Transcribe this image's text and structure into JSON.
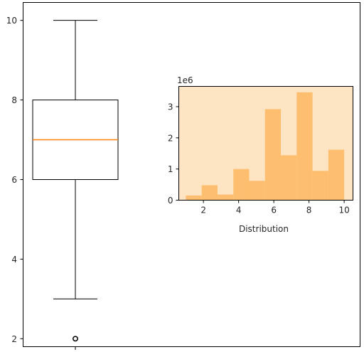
{
  "chart_data": [
    {
      "type": "box",
      "ylim": [
        1.8,
        10.45
      ],
      "yticks": [
        "2",
        "4",
        "6",
        "8",
        "10"
      ],
      "box": {
        "whisker_low": 3,
        "q1": 6,
        "median": 7,
        "q3": 8,
        "whisker_high": 10,
        "fliers": [
          2
        ]
      },
      "colors": {
        "box": "#000000",
        "median": "#ff7f0e",
        "flier": "#000000"
      },
      "xlabel": "",
      "ylabel": "",
      "title": ""
    },
    {
      "type": "bar",
      "subtype": "histogram",
      "bin_edges": [
        1,
        1.9,
        2.8,
        3.7,
        4.6,
        5.5,
        6.4,
        7.3,
        8.2,
        9.1,
        10
      ],
      "values": [
        0.15,
        0.48,
        0.18,
        1.0,
        0.62,
        2.92,
        1.44,
        3.46,
        0.94,
        1.62
      ],
      "xlim": [
        0.6,
        10.5
      ],
      "ylim": [
        0,
        3.65
      ],
      "xticks": [
        "2",
        "4",
        "6",
        "8",
        "10"
      ],
      "yticks": [
        "0",
        "1",
        "2",
        "3"
      ],
      "offset_label": "1e6",
      "xlabel": "Distribution",
      "ylabel": "",
      "title": "",
      "colors": {
        "background": "#fde4c3",
        "bar": "#fdbf6f"
      }
    }
  ]
}
